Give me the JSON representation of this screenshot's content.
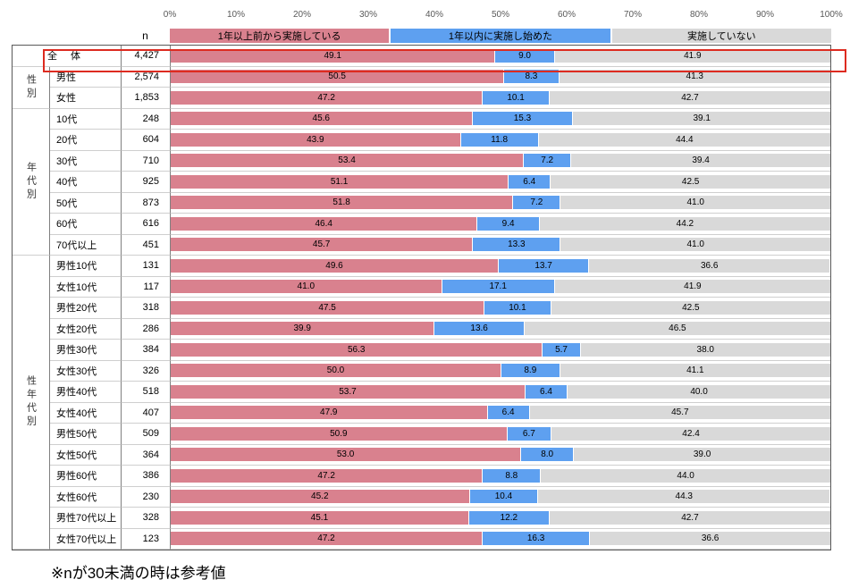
{
  "axis": {
    "ticks": [
      "0%",
      "10%",
      "20%",
      "30%",
      "40%",
      "50%",
      "60%",
      "70%",
      "80%",
      "90%",
      "100%"
    ]
  },
  "n_header": "n",
  "note": "※nが30未満の時は参考値",
  "highlight_color": "#dd2b20",
  "legend": [
    {
      "label": "1年以上前から実施している",
      "color": "#D9818E"
    },
    {
      "label": "1年以内に実施し始めた",
      "color": "#5EA0F0"
    },
    {
      "label": "実施していない",
      "color": "#D9D9D9"
    }
  ],
  "chart_data": {
    "type": "bar",
    "stacked": true,
    "orientation": "horizontal",
    "xlim": [
      0,
      100
    ],
    "series": [
      "1年以上前から実施している",
      "1年以内に実施し始めた",
      "実施していない"
    ],
    "groups": [
      {
        "name": "",
        "rows": [
          {
            "label": "全 体",
            "n": "4,427",
            "values": [
              49.1,
              9.0,
              41.9
            ],
            "highlight": true
          }
        ]
      },
      {
        "name": "性別",
        "rows": [
          {
            "label": "男性",
            "n": "2,574",
            "values": [
              50.5,
              8.3,
              41.3
            ]
          },
          {
            "label": "女性",
            "n": "1,853",
            "values": [
              47.2,
              10.1,
              42.7
            ]
          }
        ]
      },
      {
        "name": "年代別",
        "rows": [
          {
            "label": "10代",
            "n": "248",
            "values": [
              45.6,
              15.3,
              39.1
            ]
          },
          {
            "label": "20代",
            "n": "604",
            "values": [
              43.9,
              11.8,
              44.4
            ]
          },
          {
            "label": "30代",
            "n": "710",
            "values": [
              53.4,
              7.2,
              39.4
            ]
          },
          {
            "label": "40代",
            "n": "925",
            "values": [
              51.1,
              6.4,
              42.5
            ]
          },
          {
            "label": "50代",
            "n": "873",
            "values": [
              51.8,
              7.2,
              41.0
            ]
          },
          {
            "label": "60代",
            "n": "616",
            "values": [
              46.4,
              9.4,
              44.2
            ]
          },
          {
            "label": "70代以上",
            "n": "451",
            "values": [
              45.7,
              13.3,
              41.0
            ]
          }
        ]
      },
      {
        "name": "性年代別",
        "rows": [
          {
            "label": "男性10代",
            "n": "131",
            "values": [
              49.6,
              13.7,
              36.6
            ]
          },
          {
            "label": "女性10代",
            "n": "117",
            "values": [
              41.0,
              17.1,
              41.9
            ]
          },
          {
            "label": "男性20代",
            "n": "318",
            "values": [
              47.5,
              10.1,
              42.5
            ]
          },
          {
            "label": "女性20代",
            "n": "286",
            "values": [
              39.9,
              13.6,
              46.5
            ]
          },
          {
            "label": "男性30代",
            "n": "384",
            "values": [
              56.3,
              5.7,
              38.0
            ]
          },
          {
            "label": "女性30代",
            "n": "326",
            "values": [
              50.0,
              8.9,
              41.1
            ]
          },
          {
            "label": "男性40代",
            "n": "518",
            "values": [
              53.7,
              6.4,
              40.0
            ]
          },
          {
            "label": "女性40代",
            "n": "407",
            "values": [
              47.9,
              6.4,
              45.7
            ]
          },
          {
            "label": "男性50代",
            "n": "509",
            "values": [
              50.9,
              6.7,
              42.4
            ]
          },
          {
            "label": "女性50代",
            "n": "364",
            "values": [
              53.0,
              8.0,
              39.0
            ]
          },
          {
            "label": "男性60代",
            "n": "386",
            "values": [
              47.2,
              8.8,
              44.0
            ]
          },
          {
            "label": "女性60代",
            "n": "230",
            "values": [
              45.2,
              10.4,
              44.3
            ]
          },
          {
            "label": "男性70代以上",
            "n": "328",
            "values": [
              45.1,
              12.2,
              42.7
            ]
          },
          {
            "label": "女性70代以上",
            "n": "123",
            "values": [
              47.2,
              16.3,
              36.6
            ]
          }
        ]
      }
    ]
  }
}
